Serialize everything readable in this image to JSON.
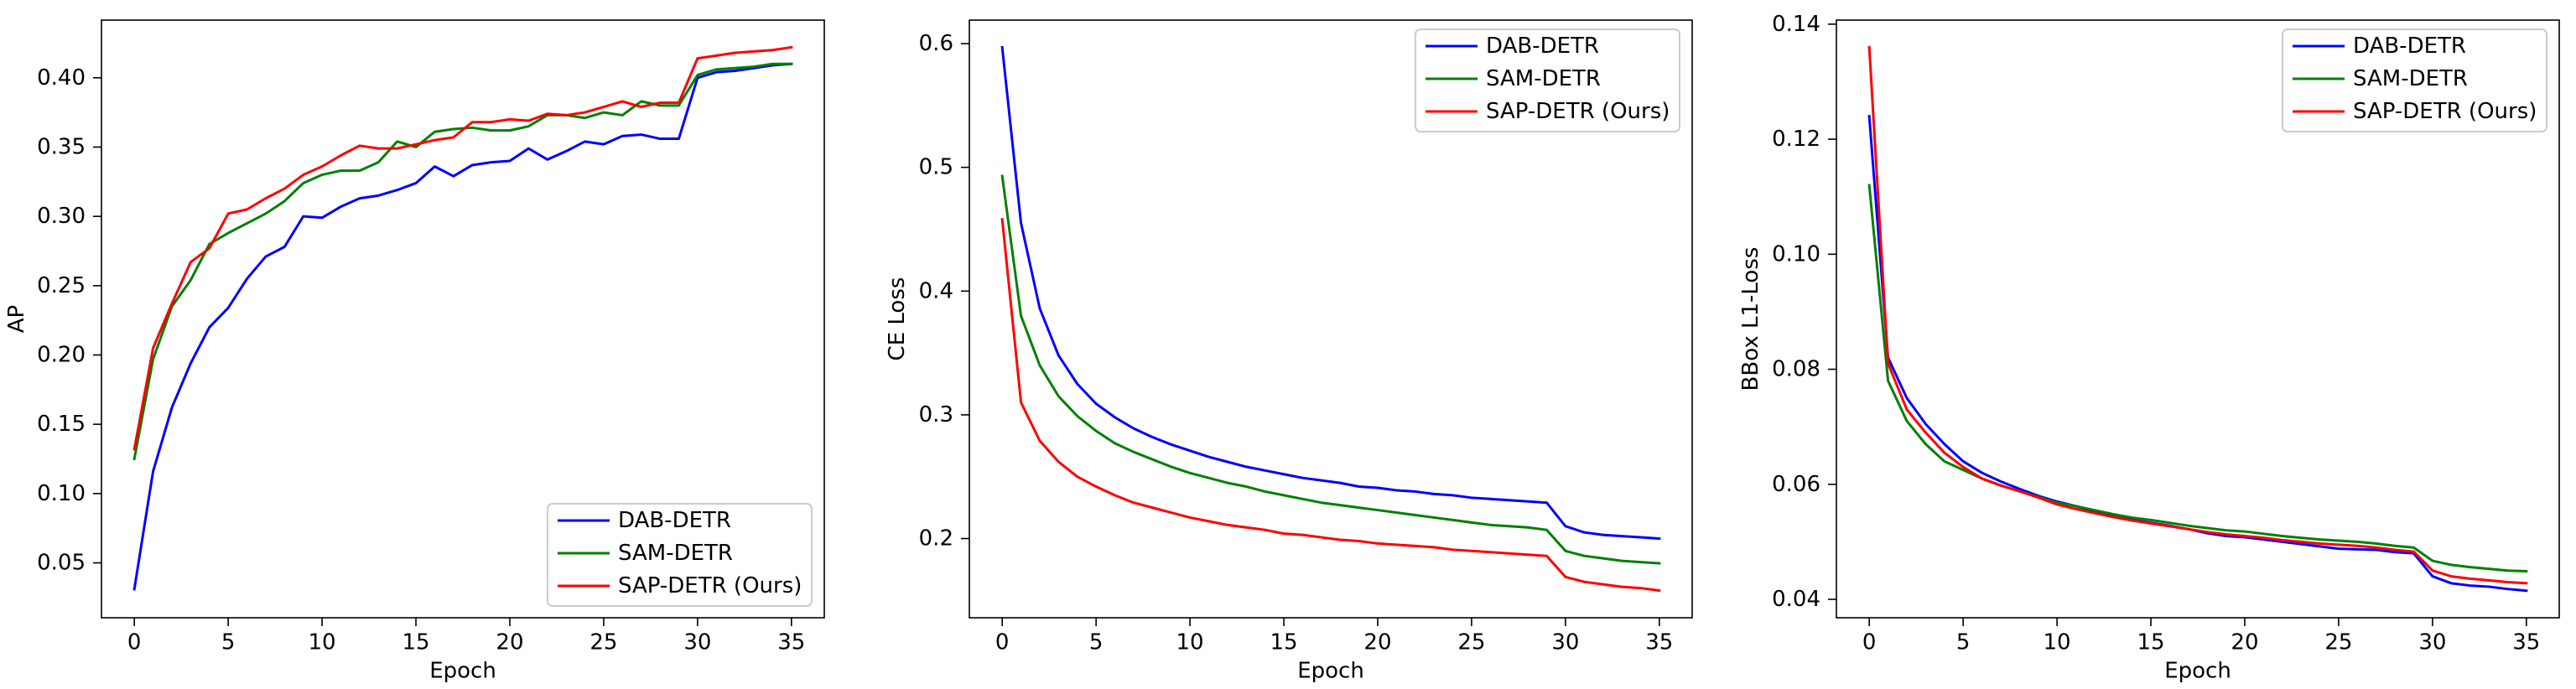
{
  "chart_data": [
    {
      "type": "line",
      "title": "",
      "xlabel": "Epoch",
      "ylabel": "AP",
      "xlim": [
        -1.75,
        36.75
      ],
      "ylim": [
        0.0104,
        0.4416
      ],
      "grid": false,
      "legend_position": "lower-right",
      "xticks": [
        0,
        5,
        10,
        15,
        20,
        25,
        30,
        35
      ],
      "xticklabels": [
        "0",
        "5",
        "10",
        "15",
        "20",
        "25",
        "30",
        "35"
      ],
      "yticks": [
        0.05,
        0.1,
        0.15,
        0.2,
        0.25,
        0.3,
        0.35,
        0.4
      ],
      "yticklabels": [
        "0.05",
        "0.10",
        "0.15",
        "0.20",
        "0.25",
        "0.30",
        "0.35",
        "0.40"
      ],
      "x": [
        0,
        1,
        2,
        3,
        4,
        5,
        6,
        7,
        8,
        9,
        10,
        11,
        12,
        13,
        14,
        15,
        16,
        17,
        18,
        19,
        20,
        21,
        22,
        23,
        24,
        25,
        26,
        27,
        28,
        29,
        30,
        31,
        32,
        33,
        34,
        35
      ],
      "series": [
        {
          "name": "DAB-DETR",
          "color": "#0000ff",
          "values": [
            0.031,
            0.116,
            0.162,
            0.194,
            0.22,
            0.234,
            0.255,
            0.271,
            0.278,
            0.3,
            0.299,
            0.307,
            0.313,
            0.315,
            0.319,
            0.324,
            0.336,
            0.329,
            0.337,
            0.339,
            0.34,
            0.349,
            0.341,
            0.347,
            0.354,
            0.352,
            0.358,
            0.359,
            0.356,
            0.356,
            0.4,
            0.404,
            0.405,
            0.407,
            0.409,
            0.41
          ]
        },
        {
          "name": "SAM-DETR",
          "color": "#008000",
          "values": [
            0.125,
            0.197,
            0.235,
            0.254,
            0.28,
            0.288,
            0.295,
            0.302,
            0.311,
            0.324,
            0.33,
            0.333,
            0.333,
            0.339,
            0.354,
            0.35,
            0.361,
            0.363,
            0.364,
            0.362,
            0.362,
            0.365,
            0.373,
            0.373,
            0.371,
            0.375,
            0.373,
            0.383,
            0.38,
            0.38,
            0.402,
            0.406,
            0.407,
            0.408,
            0.41,
            0.41
          ]
        },
        {
          "name": "SAP-DETR (Ours)",
          "color": "#ff0000",
          "values": [
            0.132,
            0.205,
            0.237,
            0.267,
            0.277,
            0.302,
            0.305,
            0.313,
            0.32,
            0.33,
            0.336,
            0.344,
            0.351,
            0.349,
            0.349,
            0.352,
            0.355,
            0.357,
            0.368,
            0.368,
            0.37,
            0.369,
            0.374,
            0.373,
            0.375,
            0.379,
            0.383,
            0.379,
            0.382,
            0.382,
            0.414,
            0.416,
            0.418,
            0.419,
            0.42,
            0.422
          ]
        }
      ]
    },
    {
      "type": "line",
      "title": "",
      "xlabel": "Epoch",
      "ylabel": "CE Loss",
      "xlim": [
        -1.75,
        36.75
      ],
      "ylim": [
        0.136,
        0.619
      ],
      "grid": false,
      "legend_position": "upper-right",
      "xticks": [
        0,
        5,
        10,
        15,
        20,
        25,
        30,
        35
      ],
      "xticklabels": [
        "0",
        "5",
        "10",
        "15",
        "20",
        "25",
        "30",
        "35"
      ],
      "yticks": [
        0.2,
        0.3,
        0.4,
        0.5,
        0.6
      ],
      "yticklabels": [
        "0.2",
        "0.3",
        "0.4",
        "0.5",
        "0.6"
      ],
      "x": [
        0,
        1,
        2,
        3,
        4,
        5,
        6,
        7,
        8,
        9,
        10,
        11,
        12,
        13,
        14,
        15,
        16,
        17,
        18,
        19,
        20,
        21,
        22,
        23,
        24,
        25,
        26,
        27,
        28,
        29,
        30,
        31,
        32,
        33,
        34,
        35
      ],
      "series": [
        {
          "name": "DAB-DETR",
          "color": "#0000ff",
          "values": [
            0.597,
            0.455,
            0.386,
            0.348,
            0.325,
            0.309,
            0.298,
            0.289,
            0.282,
            0.276,
            0.271,
            0.266,
            0.262,
            0.258,
            0.255,
            0.252,
            0.249,
            0.247,
            0.245,
            0.242,
            0.241,
            0.239,
            0.238,
            0.236,
            0.235,
            0.233,
            0.232,
            0.231,
            0.23,
            0.229,
            0.21,
            0.205,
            0.203,
            0.202,
            0.201,
            0.2
          ]
        },
        {
          "name": "SAM-DETR",
          "color": "#008000",
          "values": [
            0.493,
            0.38,
            0.34,
            0.315,
            0.299,
            0.287,
            0.277,
            0.27,
            0.264,
            0.258,
            0.253,
            0.249,
            0.245,
            0.242,
            0.238,
            0.235,
            0.232,
            0.229,
            0.227,
            0.225,
            0.223,
            0.221,
            0.219,
            0.217,
            0.215,
            0.213,
            0.211,
            0.21,
            0.209,
            0.207,
            0.19,
            0.186,
            0.184,
            0.182,
            0.181,
            0.18
          ]
        },
        {
          "name": "SAP-DETR (Ours)",
          "color": "#ff0000",
          "values": [
            0.458,
            0.31,
            0.279,
            0.262,
            0.25,
            0.242,
            0.235,
            0.229,
            0.225,
            0.221,
            0.217,
            0.214,
            0.211,
            0.209,
            0.207,
            0.204,
            0.203,
            0.201,
            0.199,
            0.198,
            0.196,
            0.195,
            0.194,
            0.193,
            0.191,
            0.19,
            0.189,
            0.188,
            0.187,
            0.186,
            0.169,
            0.165,
            0.163,
            0.161,
            0.16,
            0.158
          ]
        }
      ]
    },
    {
      "type": "line",
      "title": "",
      "xlabel": "Epoch",
      "ylabel": "BBox L1-Loss",
      "xlim": [
        -1.75,
        36.75
      ],
      "ylim": [
        0.0368,
        0.1407
      ],
      "grid": false,
      "legend_position": "upper-right",
      "xticks": [
        0,
        5,
        10,
        15,
        20,
        25,
        30,
        35
      ],
      "xticklabels": [
        "0",
        "5",
        "10",
        "15",
        "20",
        "25",
        "30",
        "35"
      ],
      "yticks": [
        0.04,
        0.06,
        0.08,
        0.1,
        0.12,
        0.14
      ],
      "yticklabels": [
        "0.04",
        "0.06",
        "0.08",
        "0.10",
        "0.12",
        "0.14"
      ],
      "x": [
        0,
        1,
        2,
        3,
        4,
        5,
        6,
        7,
        8,
        9,
        10,
        11,
        12,
        13,
        14,
        15,
        16,
        17,
        18,
        19,
        20,
        21,
        22,
        23,
        24,
        25,
        26,
        27,
        28,
        29,
        30,
        31,
        32,
        33,
        34,
        35
      ],
      "series": [
        {
          "name": "DAB-DETR",
          "color": "#0000ff",
          "values": [
            0.124,
            0.082,
            0.075,
            0.0705,
            0.067,
            0.064,
            0.062,
            0.0605,
            0.0592,
            0.058,
            0.057,
            0.0562,
            0.0553,
            0.0545,
            0.0538,
            0.0533,
            0.0528,
            0.0522,
            0.0515,
            0.051,
            0.0508,
            0.0504,
            0.05,
            0.0496,
            0.0492,
            0.0488,
            0.0487,
            0.0486,
            0.0482,
            0.048,
            0.044,
            0.0428,
            0.0424,
            0.0422,
            0.0418,
            0.0415
          ]
        },
        {
          "name": "SAM-DETR",
          "color": "#008000",
          "values": [
            0.112,
            0.078,
            0.071,
            0.067,
            0.064,
            0.0625,
            0.061,
            0.0598,
            0.0588,
            0.0578,
            0.0568,
            0.0562,
            0.0555,
            0.0548,
            0.0542,
            0.0538,
            0.0533,
            0.0528,
            0.0524,
            0.052,
            0.0518,
            0.0514,
            0.051,
            0.0507,
            0.0504,
            0.0502,
            0.05,
            0.0497,
            0.0493,
            0.049,
            0.0467,
            0.046,
            0.0456,
            0.0453,
            0.045,
            0.0449
          ]
        },
        {
          "name": "SAP-DETR (Ours)",
          "color": "#ff0000",
          "values": [
            0.136,
            0.081,
            0.073,
            0.069,
            0.0655,
            0.063,
            0.061,
            0.0598,
            0.0588,
            0.0577,
            0.0565,
            0.0557,
            0.055,
            0.0543,
            0.0537,
            0.0532,
            0.0527,
            0.0522,
            0.0517,
            0.0513,
            0.051,
            0.0507,
            0.0503,
            0.05,
            0.0497,
            0.0495,
            0.0493,
            0.049,
            0.0486,
            0.0483,
            0.045,
            0.044,
            0.0436,
            0.0433,
            0.043,
            0.0428
          ]
        }
      ]
    }
  ]
}
